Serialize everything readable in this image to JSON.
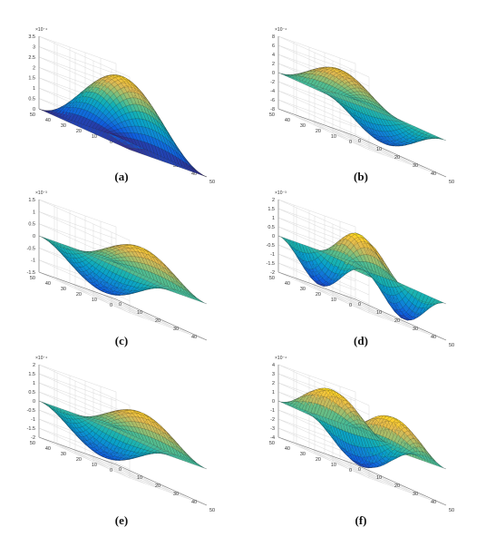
{
  "figure": {
    "captions": [
      "(a)",
      "(b)",
      "(c)",
      "(d)",
      "(e)",
      "(f)"
    ]
  },
  "chart_data": [
    {
      "id": "a",
      "type": "surface",
      "x_ticks": [
        "0",
        "10",
        "20",
        "30",
        "40",
        "50"
      ],
      "y_ticks": [
        "0",
        "10",
        "20",
        "30",
        "40",
        "50"
      ],
      "z_ticks": [
        "0",
        "0.5",
        "1",
        "1.5",
        "2",
        "2.5",
        "3",
        "3.5"
      ],
      "z_exponent": "×10⁻⁴",
      "zlim": [
        0,
        3.5
      ],
      "mode": [
        1,
        1
      ],
      "amplitude": 3.2,
      "scale": 0.0001,
      "grid": true,
      "colormap": "parula"
    },
    {
      "id": "b",
      "type": "surface",
      "x_ticks": [
        "0",
        "10",
        "20",
        "30",
        "40",
        "50"
      ],
      "y_ticks": [
        "0",
        "10",
        "20",
        "30",
        "40",
        "50"
      ],
      "z_ticks": [
        "-8",
        "-6",
        "-4",
        "-2",
        "0",
        "2",
        "4",
        "6",
        "8"
      ],
      "z_exponent": "×10⁻⁴",
      "zlim": [
        -8,
        8
      ],
      "mode": [
        2,
        1
      ],
      "amplitude": 6,
      "scale": 0.0001,
      "grid": true,
      "colormap": "parula"
    },
    {
      "id": "c",
      "type": "surface",
      "x_ticks": [
        "0",
        "10",
        "20",
        "30",
        "40"
      ],
      "y_ticks": [
        "0",
        "10",
        "20",
        "30",
        "40",
        "50"
      ],
      "z_ticks": [
        "-1.5",
        "-1",
        "-0.5",
        "0",
        "0.5",
        "1",
        "1.5"
      ],
      "z_exponent": "×10⁻³",
      "zlim": [
        -1.5,
        1.5
      ],
      "mode": [
        1,
        2
      ],
      "amplitude": 1.2,
      "scale": 0.001,
      "grid": true,
      "colormap": "parula"
    },
    {
      "id": "d",
      "type": "surface",
      "x_ticks": [
        "0",
        "10",
        "20",
        "30",
        "40",
        "50"
      ],
      "y_ticks": [
        "0",
        "10",
        "20",
        "30",
        "40",
        "50"
      ],
      "z_ticks": [
        "-2",
        "-1.5",
        "-1",
        "-0.5",
        "0",
        "0.5",
        "1",
        "1.5",
        "2"
      ],
      "z_exponent": "×10⁻³",
      "zlim": [
        -2,
        2
      ],
      "mode": [
        2,
        2
      ],
      "amplitude": 1.8,
      "scale": 0.001,
      "grid": true,
      "colormap": "parula"
    },
    {
      "id": "e",
      "type": "surface",
      "x_ticks": [
        "0",
        "10",
        "20",
        "30",
        "40",
        "50"
      ],
      "y_ticks": [
        "0",
        "10",
        "20",
        "30",
        "40",
        "50"
      ],
      "z_ticks": [
        "-2",
        "-1.5",
        "-1",
        "-0.5",
        "0",
        "0.5",
        "1",
        "1.5",
        "2"
      ],
      "z_exponent": "×10⁻⁴",
      "zlim": [
        -2,
        2
      ],
      "mode": [
        1,
        2
      ],
      "amplitude": 1.6,
      "scale": 0.0001,
      "grid": true,
      "colormap": "parula"
    },
    {
      "id": "f",
      "type": "surface",
      "x_ticks": [
        "0",
        "10",
        "20",
        "30",
        "40",
        "50"
      ],
      "y_ticks": [
        "0",
        "10",
        "20",
        "30",
        "40",
        "50"
      ],
      "z_ticks": [
        "-4",
        "-3",
        "-2",
        "-1",
        "0",
        "1",
        "2",
        "3",
        "4"
      ],
      "z_exponent": "×10⁻⁴",
      "zlim": [
        -4,
        4
      ],
      "mode": [
        3,
        1
      ],
      "amplitude": 3.5,
      "scale": 0.0001,
      "grid": true,
      "colormap": "parula"
    }
  ]
}
